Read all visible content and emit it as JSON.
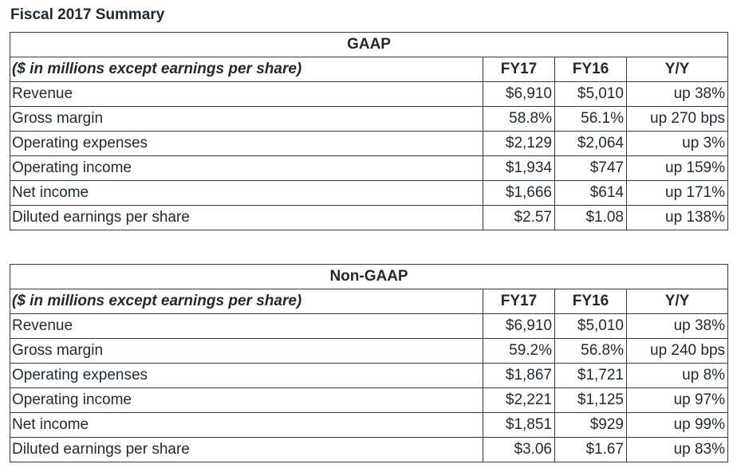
{
  "page_title": "Fiscal 2017 Summary",
  "tables": [
    {
      "title": "GAAP",
      "units_label": "($ in millions except earnings per share)",
      "columns": [
        "FY17",
        "FY16",
        "Y/Y"
      ],
      "rows": [
        {
          "label": "Revenue",
          "fy17": "$6,910",
          "fy16": "$5,010",
          "yy": "up 38%"
        },
        {
          "label": "Gross margin",
          "fy17": "58.8%",
          "fy16": "56.1%",
          "yy": "up 270 bps"
        },
        {
          "label": "Operating expenses",
          "fy17": "$2,129",
          "fy16": "$2,064",
          "yy": "up 3%"
        },
        {
          "label": "Operating income",
          "fy17": "$1,934",
          "fy16": "$747",
          "yy": "up 159%"
        },
        {
          "label": "Net income",
          "fy17": "$1,666",
          "fy16": "$614",
          "yy": "up 171%"
        },
        {
          "label": "Diluted earnings per share",
          "fy17": "$2.57",
          "fy16": "$1.08",
          "yy": "up 138%"
        }
      ]
    },
    {
      "title": "Non-GAAP",
      "units_label": "($ in millions except earnings per share)",
      "columns": [
        "FY17",
        "FY16",
        "Y/Y"
      ],
      "rows": [
        {
          "label": "Revenue",
          "fy17": "$6,910",
          "fy16": "$5,010",
          "yy": "up 38%"
        },
        {
          "label": "Gross margin",
          "fy17": "59.2%",
          "fy16": "56.8%",
          "yy": "up 240 bps"
        },
        {
          "label": "Operating expenses",
          "fy17": "$1,867",
          "fy16": "$1,721",
          "yy": "up 8%"
        },
        {
          "label": "Operating income",
          "fy17": "$2,221",
          "fy16": "$1,125",
          "yy": "up 97%"
        },
        {
          "label": "Net income",
          "fy17": "$1,851",
          "fy16": "$929",
          "yy": "up 99%"
        },
        {
          "label": "Diluted earnings per share",
          "fy17": "$3.06",
          "fy16": "$1.67",
          "yy": "up 83%"
        }
      ]
    }
  ]
}
